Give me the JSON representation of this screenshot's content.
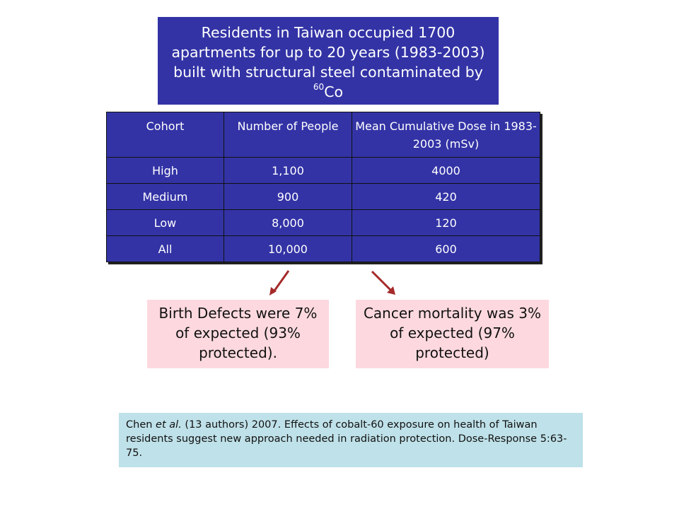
{
  "title": {
    "text_before": "Residents in Taiwan occupied 1700 apartments for up to 20 years (1983-2003) built with structural steel contaminated by ",
    "superscript": "60",
    "text_after": "Co"
  },
  "table": {
    "headers": [
      "Cohort",
      "Number of People",
      "Mean Cumulative Dose in 1983-2003 (mSv)"
    ],
    "rows": [
      {
        "cohort": "High",
        "people": "1,100",
        "dose": "4000"
      },
      {
        "cohort": "Medium",
        "people": "900",
        "dose": "420"
      },
      {
        "cohort": "Low",
        "people": "8,000",
        "dose": "120"
      },
      {
        "cohort": "All",
        "people": "10,000",
        "dose": "600"
      }
    ]
  },
  "birth_defects": {
    "text": "Birth Defects were 7% of expected (93% protected)."
  },
  "cancer_mortality": {
    "text": "Cancer mortality was 3% of expected (97% protected)"
  },
  "citation": {
    "authors": "Chen",
    "etal": "et al.",
    "rest": "(13 authors) 2007. Effects of cobalt-60 exposure on health of Taiwan residents suggest new approach needed in radiation protection. Dose-Response 5:63-75."
  },
  "colors": {
    "title_bg": "#3333a6",
    "table_bg": "#3333a6",
    "arrow": "#a52a2a",
    "pink_box": "#fdd9df",
    "citation_bg": "#bfe1e9"
  },
  "icons": [
    "arrow-down-left-icon",
    "arrow-down-right-icon"
  ]
}
